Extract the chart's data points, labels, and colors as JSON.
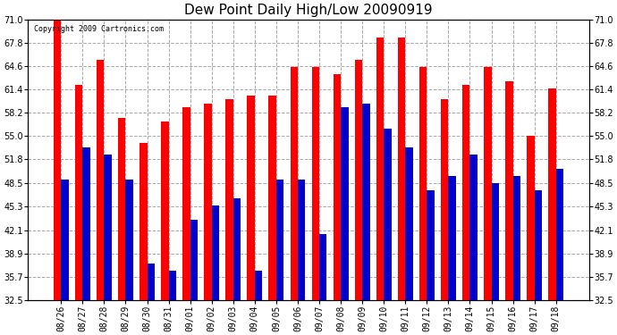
{
  "title": "Dew Point Daily High/Low 20090919",
  "copyright": "Copyright 2009 Cartronics.com",
  "dates": [
    "08/26",
    "08/27",
    "08/28",
    "08/29",
    "08/30",
    "08/31",
    "09/01",
    "09/02",
    "09/03",
    "09/04",
    "09/05",
    "09/06",
    "09/07",
    "09/08",
    "09/09",
    "09/10",
    "09/11",
    "09/12",
    "09/13",
    "09/14",
    "09/15",
    "09/16",
    "09/17",
    "09/18"
  ],
  "highs": [
    71.0,
    62.0,
    65.5,
    57.5,
    54.0,
    57.0,
    59.0,
    59.5,
    60.0,
    60.5,
    60.5,
    64.5,
    64.5,
    63.5,
    65.5,
    68.5,
    68.5,
    64.5,
    60.0,
    62.0,
    64.5,
    62.5,
    55.0,
    61.5
  ],
  "lows": [
    49.0,
    53.5,
    52.5,
    49.0,
    37.5,
    36.5,
    43.5,
    45.5,
    46.5,
    36.5,
    49.0,
    49.0,
    41.5,
    59.0,
    59.5,
    56.0,
    53.5,
    47.5,
    49.5,
    52.5,
    48.5,
    49.5,
    47.5,
    50.5
  ],
  "high_color": "#ff0000",
  "low_color": "#0000cc",
  "bg_color": "#ffffff",
  "plot_bg_color": "#ffffff",
  "grid_color": "#aaaaaa",
  "ylim_min": 32.5,
  "ylim_max": 71.0,
  "yticks": [
    32.5,
    35.7,
    38.9,
    42.1,
    45.3,
    48.5,
    51.8,
    55.0,
    58.2,
    61.4,
    64.6,
    67.8,
    71.0
  ],
  "bar_width": 0.35,
  "title_fontsize": 11,
  "tick_fontsize": 7,
  "copyright_fontsize": 6
}
